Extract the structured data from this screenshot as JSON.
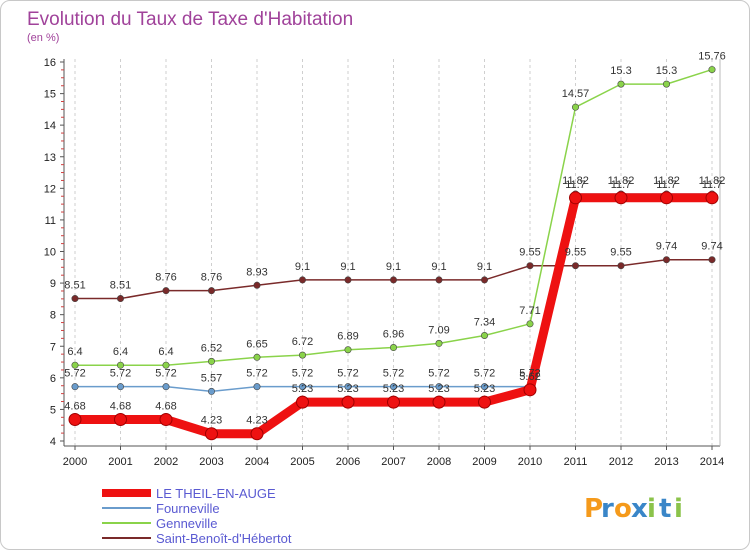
{
  "chart_data": {
    "type": "line",
    "title": "Evolution du Taux de Taxe d'Habitation",
    "subtitle": "(en %)",
    "xlabel": "",
    "ylabel": "",
    "ylim": [
      4,
      16
    ],
    "yticks": [
      "4",
      "5",
      "6",
      "7",
      "8",
      "9",
      "10",
      "11",
      "12",
      "13",
      "14",
      "15",
      "16"
    ],
    "categories": [
      "2000",
      "2001",
      "2002",
      "2003",
      "2004",
      "2005",
      "2006",
      "2007",
      "2008",
      "2009",
      "2010",
      "2011",
      "2012",
      "2013",
      "2014"
    ],
    "grid": "vertical dashed",
    "legend_position": "bottom-left",
    "series": [
      {
        "name": "Saint-Benoît-d'Hébertot",
        "color": "#7a2a2a",
        "values": [
          8.51,
          8.51,
          8.76,
          8.76,
          8.93,
          9.1,
          9.1,
          9.1,
          9.1,
          9.1,
          9.55,
          9.55,
          9.55,
          9.74,
          9.74
        ],
        "labels": [
          "8.51",
          "8.51",
          "8.76",
          "8.76",
          "8.93",
          "9.1",
          "9.1",
          "9.1",
          "9.1",
          "9.1",
          "9.55",
          "9.55",
          "9.55",
          "9.74",
          "9.74"
        ]
      },
      {
        "name": "Genneville",
        "color": "#8ad34a",
        "values": [
          6.4,
          6.4,
          6.4,
          6.52,
          6.65,
          6.72,
          6.89,
          6.96,
          7.09,
          7.34,
          7.71,
          14.57,
          15.3,
          15.3,
          15.76
        ],
        "labels": [
          "6.4",
          "6.4",
          "6.4",
          "6.52",
          "6.65",
          "6.72",
          "6.89",
          "6.96",
          "7.09",
          "7.34",
          "7.71",
          "14.57",
          "15.3",
          "15.3",
          "15.76"
        ]
      },
      {
        "name": "Fourneville",
        "color": "#6a9ccc",
        "values": [
          5.72,
          5.72,
          5.72,
          5.57,
          5.72,
          5.72,
          5.72,
          5.72,
          5.72,
          5.72,
          5.72,
          11.82,
          11.82,
          11.82,
          11.82
        ],
        "labels": [
          "5.72",
          "5.72",
          "5.72",
          "5.57",
          "5.72",
          "5.72",
          "5.72",
          "5.72",
          "5.72",
          "5.72",
          "5.72",
          "11.82",
          "11.82",
          "11.82",
          "11.82"
        ]
      },
      {
        "name": "LE THEIL-EN-AUGE",
        "color": "#ee1111",
        "values": [
          4.68,
          4.68,
          4.68,
          4.23,
          4.23,
          5.23,
          5.23,
          5.23,
          5.23,
          5.23,
          5.62,
          11.7,
          11.7,
          11.7,
          11.7
        ],
        "labels": [
          "4.68",
          "4.68",
          "4.68",
          "4.23",
          "4.23",
          "5.23",
          "5.23",
          "5.23",
          "5.23",
          "5.23",
          "5.62",
          "11.7",
          "11.7",
          "11.7",
          "11.7"
        ]
      }
    ]
  },
  "legend": [
    "LE THEIL-EN-AUGE",
    "Fourneville",
    "Genneville",
    "Saint-Benoît-d'Hébertot"
  ],
  "logo": {
    "letters": [
      "P",
      "r",
      "o",
      "x",
      "i",
      "t",
      "i"
    ],
    "colors": [
      "#f59a1b",
      "#3a86c8",
      "#f59a1b",
      "#3a86c8",
      "#8bc34a",
      "#3a86c8",
      "#8bc34a"
    ]
  }
}
